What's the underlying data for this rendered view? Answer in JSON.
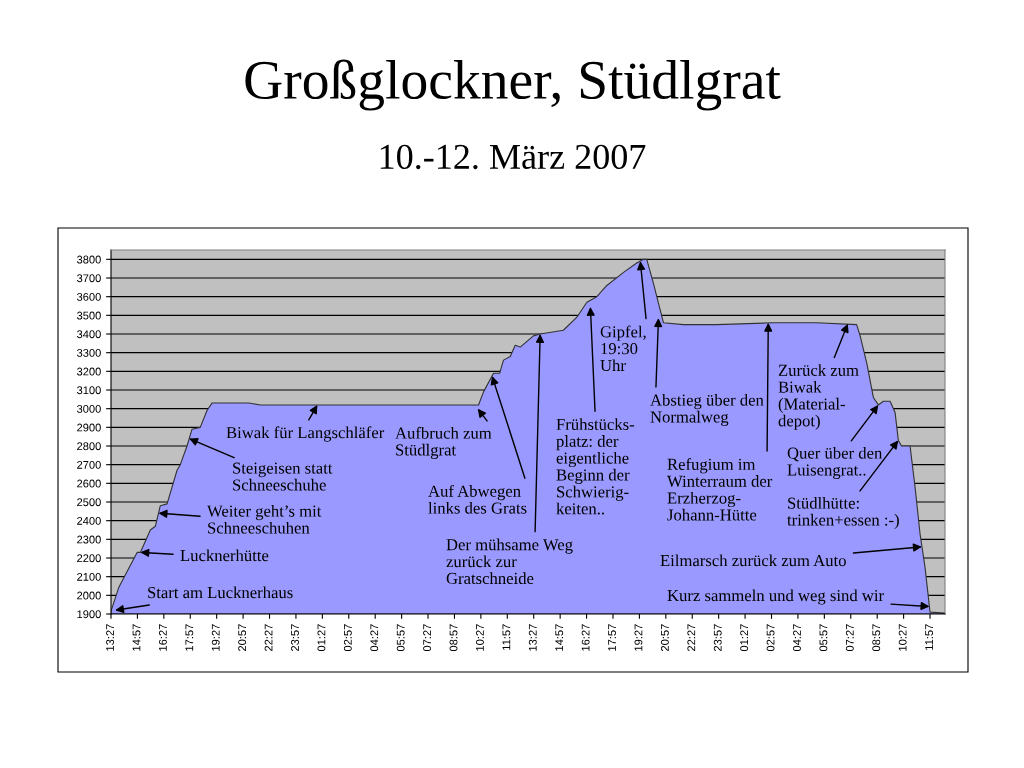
{
  "chart_data": {
    "type": "area",
    "title": "Großglockner, Stüdlgrat",
    "subtitle": "10.-12. März 2007",
    "color": "#9999ff",
    "grid": "y",
    "x": [
      "2007-03-10T13:27",
      "2007-03-10T13:53",
      "2007-03-10T14:16",
      "2007-03-10T14:56",
      "2007-03-10T15:07",
      "2007-03-10T15:41",
      "2007-03-10T15:58",
      "2007-03-10T16:15",
      "2007-03-10T16:38",
      "2007-03-10T17:12",
      "2007-03-10T17:23",
      "2007-03-10T17:46",
      "2007-03-10T18:03",
      "2007-03-10T18:31",
      "2007-03-10T18:54",
      "2007-03-10T19:11",
      "2007-03-10T20:25",
      "2007-03-10T21:16",
      "2007-03-10T21:56",
      "2007-03-10T23:49",
      "2007-03-11T01:43",
      "2007-03-11T05:29",
      "2007-03-11T10:19",
      "2007-03-11T10:36",
      "2007-03-11T11:10",
      "2007-03-11T11:31",
      "2007-03-11T11:44",
      "2007-03-11T12:07",
      "2007-03-11T12:24",
      "2007-03-11T12:41",
      "2007-03-11T13:26",
      "2007-03-11T13:49",
      "2007-03-11T15:08",
      "2007-03-11T15:54",
      "2007-03-11T16:28",
      "2007-03-11T17:02",
      "2007-03-11T17:36",
      "2007-03-11T18:33",
      "2007-03-11T19:18",
      "2007-03-11T19:41",
      "2007-03-11T19:52",
      "2007-03-11T20:15",
      "2007-03-11T20:49",
      "2007-03-11T21:57",
      "2007-03-11T23:50",
      "2007-03-12T03:04",
      "2007-03-12T05:31",
      "2007-03-12T07:47",
      "2007-03-12T07:59",
      "2007-03-12T08:22",
      "2007-03-12T08:44",
      "2007-03-12T09:01",
      "2007-03-12T09:18",
      "2007-03-12T09:41",
      "2007-03-12T09:58",
      "2007-03-12T10:09",
      "2007-03-12T10:20",
      "2007-03-12T10:49",
      "2007-03-12T11:06",
      "2007-03-12T11:23",
      "2007-03-12T11:40",
      "2007-03-12T11:57",
      "2007-03-12T12:48"
    ],
    "values": [
      1915,
      2040,
      2110,
      2230,
      2230,
      2350,
      2370,
      2480,
      2490,
      2670,
      2700,
      2800,
      2890,
      2900,
      2990,
      3030,
      3030,
      3030,
      3020,
      3020,
      3020,
      3020,
      3020,
      3090,
      3190,
      3190,
      3260,
      3280,
      3340,
      3330,
      3390,
      3400,
      3420,
      3490,
      3570,
      3600,
      3660,
      3730,
      3780,
      3800,
      3800,
      3670,
      3460,
      3450,
      3450,
      3460,
      3460,
      3450,
      3390,
      3240,
      3060,
      3020,
      3040,
      3040,
      2980,
      2830,
      2800,
      2800,
      2580,
      2330,
      2150,
      1910,
      1905
    ],
    "xlim": [
      "2007-03-10T13:27",
      "2007-03-12T12:48"
    ],
    "ylim": [
      1900,
      3850
    ],
    "xticks": [
      {
        "value": "2007-03-10T13:27",
        "label": "13:27"
      },
      {
        "value": "2007-03-10T14:57",
        "label": "14:57"
      },
      {
        "value": "2007-03-10T16:27",
        "label": "16:27"
      },
      {
        "value": "2007-03-10T17:57",
        "label": "17:57"
      },
      {
        "value": "2007-03-10T19:27",
        "label": "19:27"
      },
      {
        "value": "2007-03-10T20:57",
        "label": "20:57"
      },
      {
        "value": "2007-03-10T22:27",
        "label": "22:27"
      },
      {
        "value": "2007-03-10T23:57",
        "label": "23:57"
      },
      {
        "value": "2007-03-11T01:27",
        "label": "01:27"
      },
      {
        "value": "2007-03-11T02:57",
        "label": "02:57"
      },
      {
        "value": "2007-03-11T04:27",
        "label": "04:27"
      },
      {
        "value": "2007-03-11T05:57",
        "label": "05:57"
      },
      {
        "value": "2007-03-11T07:27",
        "label": "07:27"
      },
      {
        "value": "2007-03-11T08:57",
        "label": "08:57"
      },
      {
        "value": "2007-03-11T10:27",
        "label": "10:27"
      },
      {
        "value": "2007-03-11T11:57",
        "label": "11:57"
      },
      {
        "value": "2007-03-11T13:27",
        "label": "13:27"
      },
      {
        "value": "2007-03-11T14:57",
        "label": "14:57"
      },
      {
        "value": "2007-03-11T16:27",
        "label": "16:27"
      },
      {
        "value": "2007-03-11T17:57",
        "label": "17:57"
      },
      {
        "value": "2007-03-11T19:27",
        "label": "19:27"
      },
      {
        "value": "2007-03-11T20:57",
        "label": "20:57"
      },
      {
        "value": "2007-03-11T22:27",
        "label": "22:27"
      },
      {
        "value": "2007-03-11T23:57",
        "label": "23:57"
      },
      {
        "value": "2007-03-12T01:27",
        "label": "01:27"
      },
      {
        "value": "2007-03-12T02:57",
        "label": "02:57"
      },
      {
        "value": "2007-03-12T04:27",
        "label": "04:27"
      },
      {
        "value": "2007-03-12T05:57",
        "label": "05:57"
      },
      {
        "value": "2007-03-12T07:27",
        "label": "07:27"
      },
      {
        "value": "2007-03-12T08:57",
        "label": "08:57"
      },
      {
        "value": "2007-03-12T10:27",
        "label": "10:27"
      },
      {
        "value": "2007-03-12T11:57",
        "label": "11:57"
      }
    ],
    "yticks": [
      1900,
      2000,
      2100,
      2200,
      2300,
      2400,
      2500,
      2600,
      2700,
      2800,
      2900,
      3000,
      3100,
      3200,
      3300,
      3400,
      3500,
      3600,
      3700,
      3800
    ],
    "annotations": [
      {
        "text": "Start am Lucknerhaus",
        "x": "2007-03-10T13:41",
        "y": 1920
      },
      {
        "text": "Lucknerhütte",
        "x": "2007-03-10T15:07",
        "y": 2230
      },
      {
        "text": "Weiter geht’s mit\nSchneeschuhen",
        "x": "2007-03-10T16:09",
        "y": 2440
      },
      {
        "text": "Steigeisen statt\nSchneeschuhe",
        "x": "2007-03-10T17:53",
        "y": 2840
      },
      {
        "text": "Biwak für Langschläfer",
        "x": "2007-03-11T01:10",
        "y": 3020
      },
      {
        "text": "Aufbruch zum\nStüdlgrat",
        "x": "2007-03-11T10:16",
        "y": 3000
      },
      {
        "text": "Auf Abwegen\nlinks des Grats",
        "x": "2007-03-11T11:05",
        "y": 3175
      },
      {
        "text": "Der mühsame Weg\nzurück zur\nGratschneide",
        "x": "2007-03-11T13:49",
        "y": 3400
      },
      {
        "text": "Frühstücks-\nplatz: der\neigentliche\nBeginn der\nSchwierig-\nkeiten..",
        "x": "2007-03-11T16:40",
        "y": 3545
      },
      {
        "text": "Gipfel,\n19:30\nUhr",
        "x": "2007-03-11T19:30",
        "y": 3790
      },
      {
        "text": "Abstieg über den\nNormalweg",
        "x": "2007-03-11T20:32",
        "y": 3485
      },
      {
        "text": "Refugium im\nWinterraum der\nErzherzog-\nJohann-Hütte",
        "x": "2007-03-12T02:46",
        "y": 3460
      },
      {
        "text": "Zurück zum\nBiwak\n(Material-\ndepot)",
        "x": "2007-03-12T07:17",
        "y": 3455
      },
      {
        "text": "Quer über den\nLuisengrat..",
        "x": "2007-03-12T09:01",
        "y": 3020
      },
      {
        "text": "Stüdlhütte:\ntrinken+essen :-)",
        "x": "2007-03-12T10:09",
        "y": 2830
      },
      {
        "text": "Eilmarsch zurück zum Auto",
        "x": "2007-03-12T11:29",
        "y": 2260
      },
      {
        "text": "Kurz sammeln und weg sind wir",
        "x": "2007-03-12T11:55",
        "y": 1940
      }
    ]
  }
}
